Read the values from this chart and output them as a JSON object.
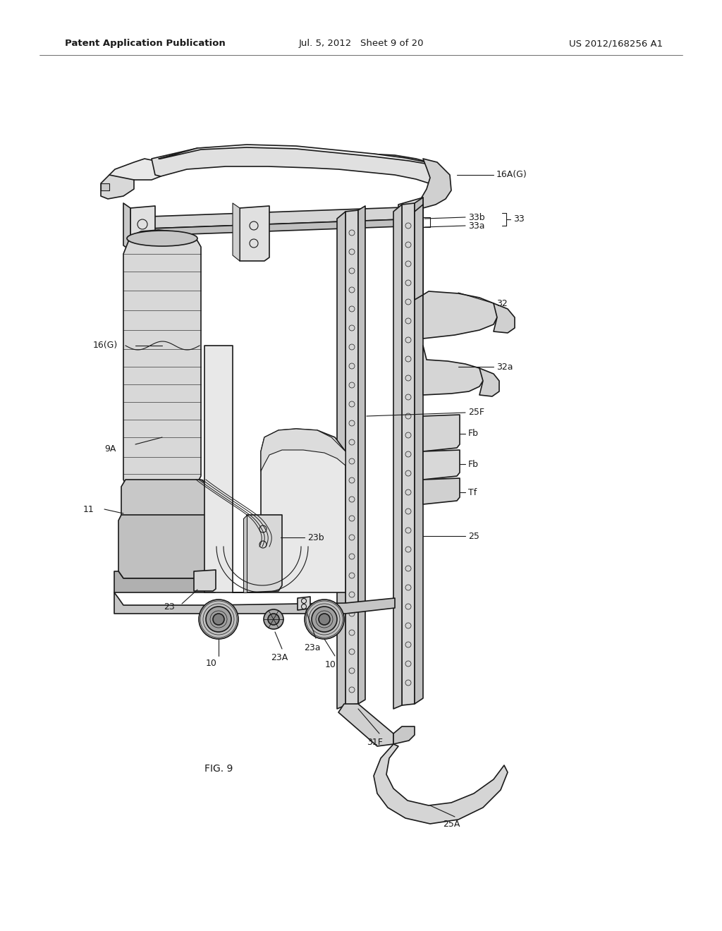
{
  "background_color": "#ffffff",
  "header_left": "Patent Application Publication",
  "header_center": "Jul. 5, 2012   Sheet 9 of 20",
  "header_right": "US 2012/168256 A1",
  "figure_label": "FIG. 9",
  "line_color": "#1a1a1a",
  "header_fontsize": 9.5,
  "label_fontsize": 9,
  "fig_label_fontsize": 10
}
